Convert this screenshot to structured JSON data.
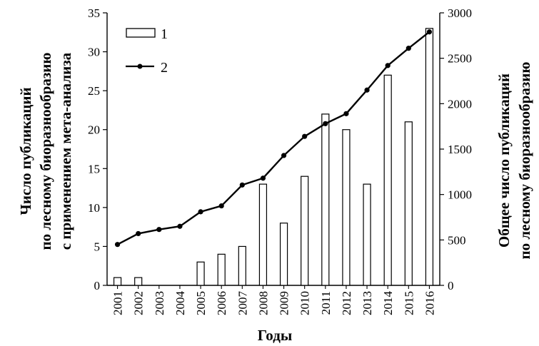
{
  "chart_data": {
    "type": "bar+line",
    "categories": [
      "2001",
      "2002",
      "2003",
      "2004",
      "2005",
      "2006",
      "2007",
      "2008",
      "2009",
      "2010",
      "2011",
      "2012",
      "2013",
      "2014",
      "2015",
      "2016"
    ],
    "series": [
      {
        "name": "1",
        "type": "bar",
        "axis": "left",
        "values": [
          1,
          1,
          0,
          0,
          3,
          4,
          5,
          13,
          8,
          14,
          22,
          20,
          13,
          27,
          21,
          33
        ]
      },
      {
        "name": "2",
        "type": "line",
        "axis": "right",
        "values": [
          450,
          570,
          615,
          650,
          810,
          875,
          1105,
          1180,
          1430,
          1640,
          1780,
          1890,
          2150,
          2420,
          2610,
          2790
        ]
      }
    ],
    "xlabel": "Годы",
    "ylabel_left": [
      "Число публикаций",
      "по лесному биоразнообразию",
      "с применением мета-анализа"
    ],
    "ylabel_right": [
      "Общее число публикаций",
      "по лесному биоразнообразию"
    ],
    "ylim_left": [
      0,
      35
    ],
    "ylim_right": [
      0,
      3000
    ],
    "yticks_left": [
      "0",
      "5",
      "10",
      "15",
      "20",
      "25",
      "30",
      "35"
    ],
    "yticks_right": [
      "0",
      "500",
      "1000",
      "1500",
      "2000",
      "2500",
      "3000"
    ],
    "grid": false,
    "legend_position": "top-left",
    "colors": {
      "bar_fill": "#ffffff",
      "bar_stroke": "#000000",
      "line": "#000000"
    }
  }
}
